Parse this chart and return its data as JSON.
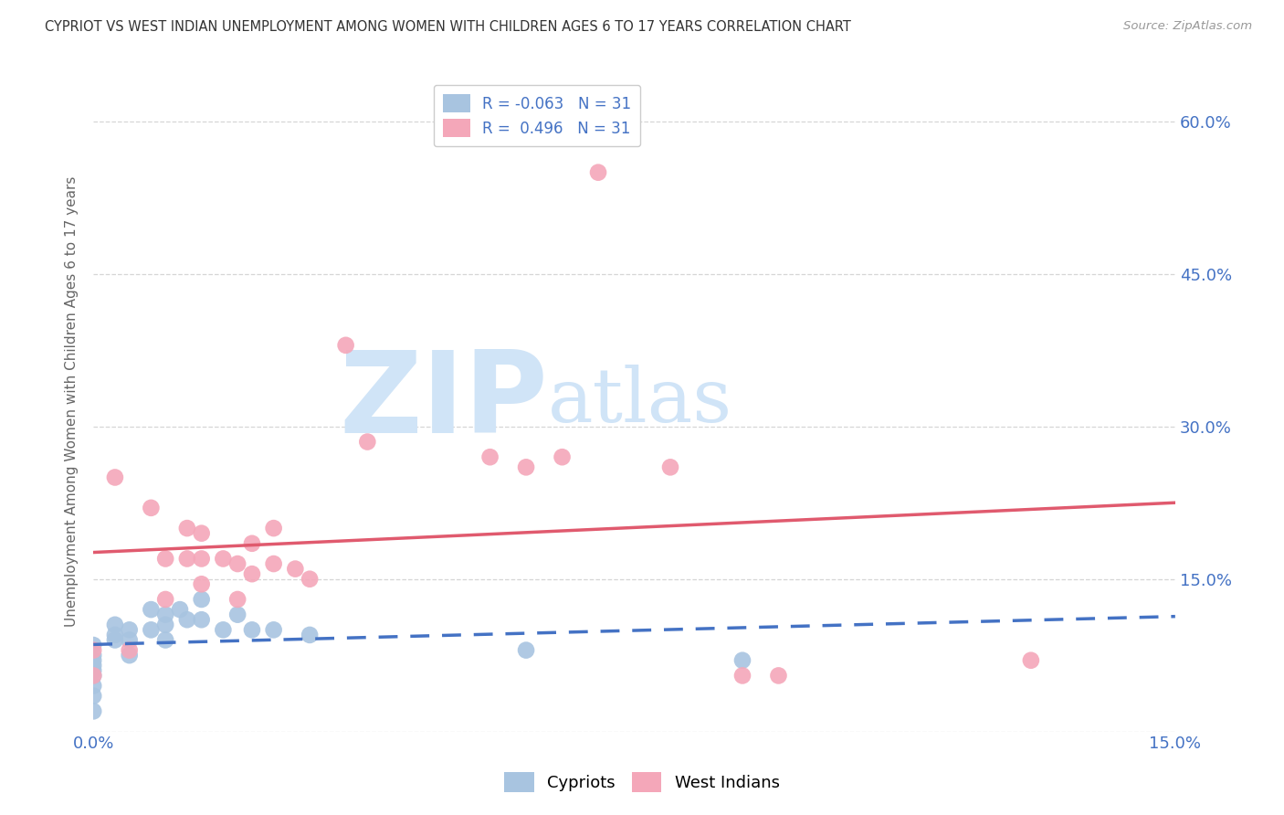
{
  "title": "CYPRIOT VS WEST INDIAN UNEMPLOYMENT AMONG WOMEN WITH CHILDREN AGES 6 TO 17 YEARS CORRELATION CHART",
  "source": "Source: ZipAtlas.com",
  "ylabel": "Unemployment Among Women with Children Ages 6 to 17 years",
  "xlim": [
    0.0,
    0.15
  ],
  "ylim": [
    0.0,
    0.65
  ],
  "xticks": [
    0.0,
    0.03,
    0.06,
    0.09,
    0.12,
    0.15
  ],
  "yticks": [
    0.0,
    0.15,
    0.3,
    0.45,
    0.6
  ],
  "cypriot_color": "#a8c4e0",
  "west_indian_color": "#f4a7b9",
  "trend_cypriot_color": "#4472c4",
  "trend_west_indian_color": "#e05a6e",
  "watermark_zip": "ZIP",
  "watermark_atlas": "atlas",
  "watermark_color": "#d0e4f7",
  "background_color": "#ffffff",
  "grid_color": "#cccccc",
  "tick_color": "#4472c4",
  "label_color": "#666666",
  "legend_r1_val": "-0.063",
  "legend_r2_val": "0.496",
  "legend_n": "31",
  "cypriot_x": [
    0.0,
    0.0,
    0.0,
    0.0,
    0.0,
    0.0,
    0.0,
    0.0,
    0.0,
    0.003,
    0.003,
    0.003,
    0.005,
    0.005,
    0.005,
    0.008,
    0.008,
    0.01,
    0.01,
    0.01,
    0.012,
    0.013,
    0.015,
    0.015,
    0.018,
    0.02,
    0.022,
    0.025,
    0.03,
    0.06,
    0.09
  ],
  "cypriot_y": [
    0.085,
    0.075,
    0.07,
    0.065,
    0.06,
    0.055,
    0.045,
    0.035,
    0.02,
    0.105,
    0.095,
    0.09,
    0.1,
    0.09,
    0.075,
    0.12,
    0.1,
    0.115,
    0.105,
    0.09,
    0.12,
    0.11,
    0.13,
    0.11,
    0.1,
    0.115,
    0.1,
    0.1,
    0.095,
    0.08,
    0.07
  ],
  "west_indian_x": [
    0.0,
    0.0,
    0.003,
    0.005,
    0.008,
    0.01,
    0.01,
    0.013,
    0.013,
    0.015,
    0.015,
    0.015,
    0.018,
    0.02,
    0.02,
    0.022,
    0.022,
    0.025,
    0.025,
    0.028,
    0.03,
    0.035,
    0.038,
    0.055,
    0.06,
    0.065,
    0.07,
    0.08,
    0.09,
    0.095,
    0.13
  ],
  "west_indian_y": [
    0.08,
    0.055,
    0.25,
    0.08,
    0.22,
    0.17,
    0.13,
    0.2,
    0.17,
    0.195,
    0.17,
    0.145,
    0.17,
    0.165,
    0.13,
    0.185,
    0.155,
    0.2,
    0.165,
    0.16,
    0.15,
    0.38,
    0.285,
    0.27,
    0.26,
    0.27,
    0.55,
    0.26,
    0.055,
    0.055,
    0.07
  ]
}
